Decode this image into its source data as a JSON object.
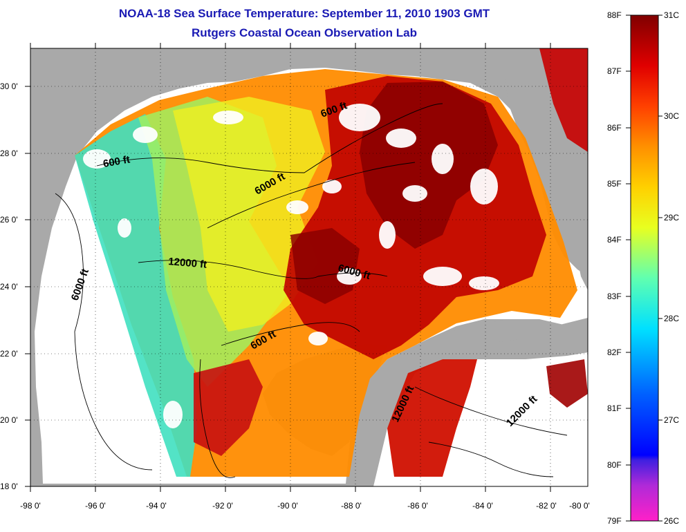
{
  "header": {
    "title": "NOAA-18 Sea Surface Temperature:  September 11, 2010 1903 GMT",
    "subtitle": "Rutgers Coastal Ocean Observation Lab"
  },
  "axes": {
    "x_ticks": [
      "-98 0'",
      "-96 0'",
      "-94 0'",
      "-92 0'",
      "-90 0'",
      "-88 0'",
      "-86 0'",
      "-84 0'",
      "-82 0'",
      "-80 0'"
    ],
    "y_ticks": [
      "30 0'",
      "28 0'",
      "26 0'",
      "24 0'",
      "22 0'",
      "20 0'",
      "18 0'"
    ]
  },
  "contour_labels": [
    {
      "text": "600 ft",
      "rotate": -10
    },
    {
      "text": "600 ft",
      "rotate": -20
    },
    {
      "text": "6000 ft",
      "rotate": -30
    },
    {
      "text": "12000 ft",
      "rotate": 5
    },
    {
      "text": "6000 ft",
      "rotate": -70
    },
    {
      "text": "6000 ft",
      "rotate": 15
    },
    {
      "text": "600 ft",
      "rotate": -30
    },
    {
      "text": "12000 ft",
      "rotate": -65
    },
    {
      "text": "12000 ft",
      "rotate": -45
    }
  ],
  "colorbar": {
    "fahrenheit": [
      "88F",
      "87F",
      "86F",
      "85F",
      "84F",
      "83F",
      "82F",
      "81F",
      "80F",
      "79F"
    ],
    "celsius": [
      "31C",
      "30C",
      "29C",
      "28C",
      "27C",
      "26C"
    ],
    "range_c": [
      26,
      31
    ],
    "range_f": [
      79,
      88
    ]
  },
  "colors": {
    "land": "#a9a9a9",
    "no_data": "#ffffff",
    "title": "#1a1ab4"
  }
}
